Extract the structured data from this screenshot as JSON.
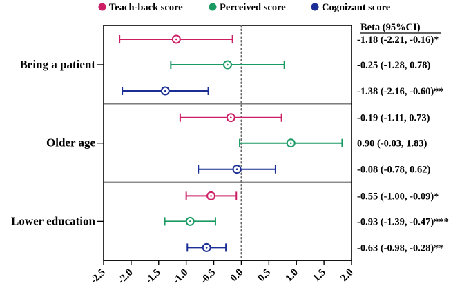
{
  "chart_data": {
    "type": "forest",
    "legend": [
      {
        "name": "Teach-back score",
        "color": "#cc1e64"
      },
      {
        "name": "Perceived score",
        "color": "#1a9a63"
      },
      {
        "name": "Cognizant score",
        "color": "#1a2e95"
      }
    ],
    "beta_header": "Beta (95%CI)",
    "xlim": [
      -2.5,
      2.0
    ],
    "xticks": [
      -2.5,
      -2.0,
      -1.5,
      -1.0,
      -0.5,
      0.0,
      0.5,
      1.0,
      1.5,
      2.0
    ],
    "xtick_labels": [
      "-2.5",
      "-2.0",
      "-1.5",
      "-1.0",
      "-0.5",
      "0.0",
      "0.5",
      "1.0",
      "1.5",
      "2.0"
    ],
    "reference_line": 0,
    "groups": [
      {
        "label": "Being a patient",
        "rows": [
          {
            "series": 0,
            "beta": -1.18,
            "lower": -2.21,
            "upper": -0.16,
            "text": "-1.18 (-2.21, -0.16)*"
          },
          {
            "series": 1,
            "beta": -0.25,
            "lower": -1.28,
            "upper": 0.78,
            "text": "-0.25 (-1.28, 0.78)"
          },
          {
            "series": 2,
            "beta": -1.38,
            "lower": -2.16,
            "upper": -0.6,
            "text": "-1.38 (-2.16, -0.60)**"
          }
        ]
      },
      {
        "label": "Older age",
        "rows": [
          {
            "series": 0,
            "beta": -0.19,
            "lower": -1.11,
            "upper": 0.73,
            "text": "-0.19 (-1.11, 0.73)"
          },
          {
            "series": 1,
            "beta": 0.9,
            "lower": -0.03,
            "upper": 1.83,
            "text": "0.90 (-0.03, 1.83)"
          },
          {
            "series": 2,
            "beta": -0.08,
            "lower": -0.78,
            "upper": 0.62,
            "text": "-0.08 (-0.78, 0.62)"
          }
        ]
      },
      {
        "label": "Lower education",
        "rows": [
          {
            "series": 0,
            "beta": -0.55,
            "lower": -1.0,
            "upper": -0.09,
            "text": "-0.55 (-1.00, -0.09)*"
          },
          {
            "series": 1,
            "beta": -0.93,
            "lower": -1.39,
            "upper": -0.47,
            "text": "-0.93 (-1.39, -0.47)***"
          },
          {
            "series": 2,
            "beta": -0.63,
            "lower": -0.98,
            "upper": -0.28,
            "text": "-0.63 (-0.98, -0.28)**"
          }
        ]
      }
    ]
  }
}
